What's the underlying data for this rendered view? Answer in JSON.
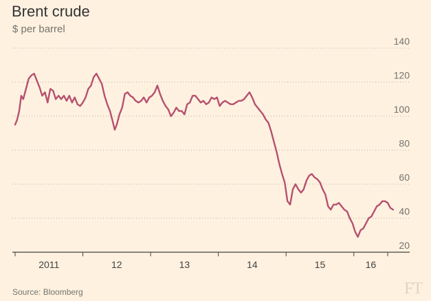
{
  "chart_data": {
    "type": "line",
    "title": "Brent crude",
    "subtitle": "$ per barrel",
    "ylabel": "$ per barrel",
    "xlabel": "",
    "source": "Source: Bloomberg",
    "logo_text": "FT",
    "ylim": [
      20,
      140
    ],
    "xlim": [
      2011.0,
      2016.5
    ],
    "yticks": [
      20,
      40,
      60,
      80,
      100,
      120,
      140
    ],
    "xticks": [
      {
        "label": "2011",
        "value": 2011.0
      },
      {
        "label": "12",
        "value": 2012.0
      },
      {
        "label": "13",
        "value": 2013.0
      },
      {
        "label": "14",
        "value": 2014.0
      },
      {
        "label": "15",
        "value": 2015.0
      },
      {
        "label": "16",
        "value": 2016.0
      }
    ],
    "grid": true,
    "legend": "none",
    "line_color": "#b5506e",
    "series": [
      {
        "values": [
          [
            2011.0,
            95
          ],
          [
            2011.03,
            98
          ],
          [
            2011.06,
            103
          ],
          [
            2011.09,
            112
          ],
          [
            2011.12,
            110
          ],
          [
            2011.16,
            116
          ],
          [
            2011.2,
            122
          ],
          [
            2011.24,
            124
          ],
          [
            2011.28,
            125
          ],
          [
            2011.32,
            121
          ],
          [
            2011.36,
            117
          ],
          [
            2011.4,
            112
          ],
          [
            2011.44,
            114
          ],
          [
            2011.48,
            108
          ],
          [
            2011.52,
            116
          ],
          [
            2011.56,
            115
          ],
          [
            2011.6,
            110
          ],
          [
            2011.64,
            112
          ],
          [
            2011.68,
            110
          ],
          [
            2011.72,
            112
          ],
          [
            2011.76,
            109
          ],
          [
            2011.8,
            112
          ],
          [
            2011.84,
            108
          ],
          [
            2011.88,
            111
          ],
          [
            2011.92,
            107
          ],
          [
            2011.96,
            106
          ],
          [
            2012.0,
            108
          ],
          [
            2012.04,
            111
          ],
          [
            2012.08,
            116
          ],
          [
            2012.12,
            118
          ],
          [
            2012.16,
            123
          ],
          [
            2012.2,
            125
          ],
          [
            2012.24,
            122
          ],
          [
            2012.28,
            119
          ],
          [
            2012.32,
            112
          ],
          [
            2012.36,
            107
          ],
          [
            2012.4,
            103
          ],
          [
            2012.44,
            97
          ],
          [
            2012.47,
            92
          ],
          [
            2012.5,
            95
          ],
          [
            2012.54,
            101
          ],
          [
            2012.58,
            105
          ],
          [
            2012.62,
            113
          ],
          [
            2012.66,
            114
          ],
          [
            2012.7,
            112
          ],
          [
            2012.74,
            111
          ],
          [
            2012.78,
            109
          ],
          [
            2012.82,
            108
          ],
          [
            2012.86,
            109
          ],
          [
            2012.9,
            111
          ],
          [
            2012.94,
            108
          ],
          [
            2012.98,
            111
          ],
          [
            2013.02,
            112
          ],
          [
            2013.06,
            114
          ],
          [
            2013.1,
            118
          ],
          [
            2013.14,
            113
          ],
          [
            2013.18,
            109
          ],
          [
            2013.22,
            106
          ],
          [
            2013.26,
            104
          ],
          [
            2013.3,
            100
          ],
          [
            2013.34,
            102
          ],
          [
            2013.38,
            105
          ],
          [
            2013.42,
            103
          ],
          [
            2013.46,
            103
          ],
          [
            2013.5,
            101
          ],
          [
            2013.54,
            107
          ],
          [
            2013.58,
            108
          ],
          [
            2013.62,
            112
          ],
          [
            2013.66,
            112
          ],
          [
            2013.7,
            110
          ],
          [
            2013.74,
            108
          ],
          [
            2013.78,
            109
          ],
          [
            2013.82,
            107
          ],
          [
            2013.86,
            108
          ],
          [
            2013.9,
            111
          ],
          [
            2013.94,
            110
          ],
          [
            2013.98,
            111
          ],
          [
            2014.02,
            106
          ],
          [
            2014.06,
            108
          ],
          [
            2014.1,
            109
          ],
          [
            2014.14,
            108
          ],
          [
            2014.18,
            107
          ],
          [
            2014.22,
            107
          ],
          [
            2014.26,
            108
          ],
          [
            2014.3,
            109
          ],
          [
            2014.34,
            109
          ],
          [
            2014.38,
            110
          ],
          [
            2014.42,
            112
          ],
          [
            2014.46,
            114
          ],
          [
            2014.5,
            111
          ],
          [
            2014.54,
            107
          ],
          [
            2014.58,
            105
          ],
          [
            2014.62,
            103
          ],
          [
            2014.66,
            101
          ],
          [
            2014.7,
            98
          ],
          [
            2014.74,
            96
          ],
          [
            2014.78,
            91
          ],
          [
            2014.82,
            85
          ],
          [
            2014.86,
            79
          ],
          [
            2014.9,
            72
          ],
          [
            2014.94,
            66
          ],
          [
            2014.98,
            61
          ],
          [
            2015.02,
            50
          ],
          [
            2015.06,
            48
          ],
          [
            2015.1,
            57
          ],
          [
            2015.14,
            60
          ],
          [
            2015.18,
            57
          ],
          [
            2015.22,
            55
          ],
          [
            2015.26,
            57
          ],
          [
            2015.3,
            62
          ],
          [
            2015.34,
            65
          ],
          [
            2015.38,
            66
          ],
          [
            2015.42,
            64
          ],
          [
            2015.46,
            63
          ],
          [
            2015.5,
            61
          ],
          [
            2015.54,
            57
          ],
          [
            2015.58,
            54
          ],
          [
            2015.62,
            47
          ],
          [
            2015.66,
            45
          ],
          [
            2015.7,
            48
          ],
          [
            2015.74,
            48
          ],
          [
            2015.78,
            49
          ],
          [
            2015.82,
            47
          ],
          [
            2015.86,
            45
          ],
          [
            2015.9,
            44
          ],
          [
            2015.94,
            40
          ],
          [
            2015.98,
            37
          ],
          [
            2016.02,
            32
          ],
          [
            2016.06,
            29
          ],
          [
            2016.1,
            33
          ],
          [
            2016.14,
            34
          ],
          [
            2016.18,
            37
          ],
          [
            2016.22,
            40
          ],
          [
            2016.26,
            41
          ],
          [
            2016.3,
            44
          ],
          [
            2016.34,
            47
          ],
          [
            2016.38,
            48
          ],
          [
            2016.42,
            50
          ],
          [
            2016.46,
            50
          ],
          [
            2016.5,
            49
          ],
          [
            2016.54,
            46
          ],
          [
            2016.58,
            45
          ]
        ]
      }
    ]
  }
}
